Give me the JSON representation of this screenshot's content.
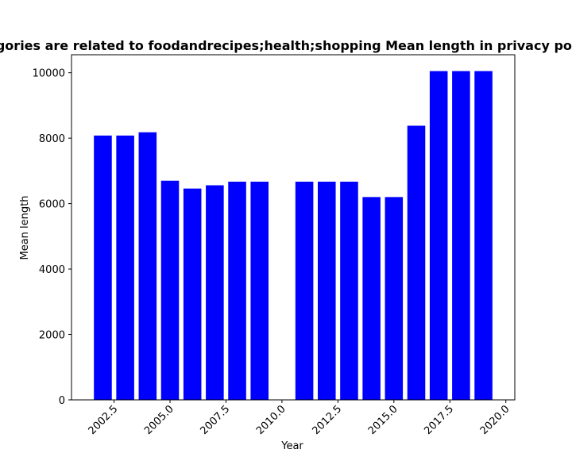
{
  "chart_data": {
    "type": "bar",
    "title": "Categories are related to foodandrecipes;health;shopping Mean length in privacy policies",
    "xlabel": "Year",
    "ylabel": "Mean length",
    "bar_color": "#0000ff",
    "x": [
      2002,
      2003,
      2004,
      2005,
      2006,
      2007,
      2008,
      2009,
      2011,
      2012,
      2013,
      2014,
      2015,
      2016,
      2017,
      2018,
      2019
    ],
    "values": [
      8080,
      8080,
      8180,
      6700,
      6460,
      6560,
      6670,
      6670,
      6670,
      6670,
      6670,
      6200,
      6200,
      8380,
      10050,
      10050,
      10050
    ],
    "xlim": [
      2000.6,
      2020.4
    ],
    "ylim": [
      0,
      10550
    ],
    "xticks": [
      2002.5,
      2005.0,
      2007.5,
      2010.0,
      2012.5,
      2015.0,
      2017.5,
      2020.0
    ],
    "xtick_labels": [
      "2002.5",
      "2005.0",
      "2007.5",
      "2010.0",
      "2012.5",
      "2015.0",
      "2017.5",
      "2020.0"
    ],
    "yticks": [
      0,
      2000,
      4000,
      6000,
      8000,
      10000
    ],
    "ytick_labels": [
      "0",
      "2000",
      "4000",
      "6000",
      "8000",
      "10000"
    ],
    "grid": false,
    "legend": "none"
  }
}
